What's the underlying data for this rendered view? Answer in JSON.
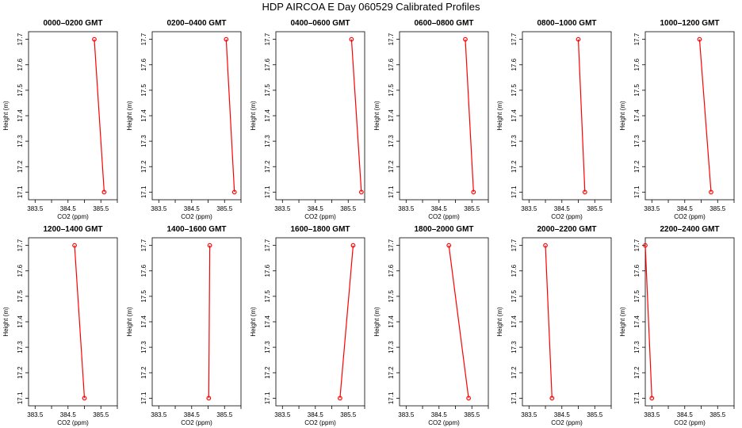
{
  "figure": {
    "title": "HDP  AIRCOA E  Day 060529  Calibrated Profiles"
  },
  "colors": {
    "series": "#ff0000",
    "axis": "#000000",
    "background": "#ffffff"
  },
  "chart_data": [
    {
      "type": "line",
      "title": "0000–0200 GMT",
      "xlabel": "CO2 (ppm)",
      "ylabel": "Height (m)",
      "xlim": [
        383.3,
        386.0
      ],
      "ylim": [
        17.07,
        17.73
      ],
      "x_ticks": [
        "383.5",
        "384.5",
        "385.5"
      ],
      "x_minor_ticks": [
        384.0,
        385.0,
        386.0
      ],
      "y_ticks": [
        "17.1",
        "17.2",
        "17.3",
        "17.4",
        "17.5",
        "17.6",
        "17.7"
      ],
      "x": [
        385.3,
        385.6
      ],
      "y": [
        17.7,
        17.1
      ],
      "grid": false
    },
    {
      "type": "line",
      "title": "0200–0400 GMT",
      "xlabel": "CO2 (ppm)",
      "ylabel": "Height (m)",
      "xlim": [
        383.3,
        386.0
      ],
      "ylim": [
        17.07,
        17.73
      ],
      "x_ticks": [
        "383.5",
        "384.5",
        "385.5"
      ],
      "x_minor_ticks": [
        384.0,
        385.0,
        386.0
      ],
      "y_ticks": [
        "17.1",
        "17.2",
        "17.3",
        "17.4",
        "17.5",
        "17.6",
        "17.7"
      ],
      "x": [
        385.55,
        385.8
      ],
      "y": [
        17.7,
        17.1
      ],
      "grid": false
    },
    {
      "type": "line",
      "title": "0400–0600 GMT",
      "xlabel": "CO2 (ppm)",
      "ylabel": "Height (m)",
      "xlim": [
        383.3,
        386.0
      ],
      "ylim": [
        17.07,
        17.73
      ],
      "x_ticks": [
        "383.5",
        "384.5",
        "385.5"
      ],
      "x_minor_ticks": [
        384.0,
        385.0,
        386.0
      ],
      "y_ticks": [
        "17.1",
        "17.2",
        "17.3",
        "17.4",
        "17.5",
        "17.6",
        "17.7"
      ],
      "x": [
        385.6,
        385.9
      ],
      "y": [
        17.7,
        17.1
      ],
      "grid": false
    },
    {
      "type": "line",
      "title": "0600–0800 GMT",
      "xlabel": "CO2 (ppm)",
      "ylabel": "Height (m)",
      "xlim": [
        383.3,
        386.0
      ],
      "ylim": [
        17.07,
        17.73
      ],
      "x_ticks": [
        "383.5",
        "384.5",
        "385.5"
      ],
      "x_minor_ticks": [
        384.0,
        385.0,
        386.0
      ],
      "y_ticks": [
        "17.1",
        "17.2",
        "17.3",
        "17.4",
        "17.5",
        "17.6",
        "17.7"
      ],
      "x": [
        385.3,
        385.55
      ],
      "y": [
        17.7,
        17.1
      ],
      "grid": false
    },
    {
      "type": "line",
      "title": "0800–1000 GMT",
      "xlabel": "CO2 (ppm)",
      "ylabel": "Height (m)",
      "xlim": [
        383.3,
        386.0
      ],
      "ylim": [
        17.07,
        17.73
      ],
      "x_ticks": [
        "383.5",
        "384.5",
        "385.5"
      ],
      "x_minor_ticks": [
        384.0,
        385.0,
        386.0
      ],
      "y_ticks": [
        "17.1",
        "17.2",
        "17.3",
        "17.4",
        "17.5",
        "17.6",
        "17.7"
      ],
      "x": [
        385.0,
        385.2
      ],
      "y": [
        17.7,
        17.1
      ],
      "grid": false
    },
    {
      "type": "line",
      "title": "1000–1200 GMT",
      "xlabel": "CO2 (ppm)",
      "ylabel": "Height (m)",
      "xlim": [
        383.3,
        386.0
      ],
      "ylim": [
        17.07,
        17.73
      ],
      "x_ticks": [
        "383.5",
        "384.5",
        "385.5"
      ],
      "x_minor_ticks": [
        384.0,
        385.0,
        386.0
      ],
      "y_ticks": [
        "17.1",
        "17.2",
        "17.3",
        "17.4",
        "17.5",
        "17.6",
        "17.7"
      ],
      "x": [
        384.95,
        385.3
      ],
      "y": [
        17.7,
        17.1
      ],
      "grid": false
    },
    {
      "type": "line",
      "title": "1200–1400 GMT",
      "xlabel": "CO2 (ppm)",
      "ylabel": "Height (m)",
      "xlim": [
        383.3,
        386.0
      ],
      "ylim": [
        17.07,
        17.73
      ],
      "x_ticks": [
        "383.5",
        "384.5",
        "385.5"
      ],
      "x_minor_ticks": [
        384.0,
        385.0,
        386.0
      ],
      "y_ticks": [
        "17.1",
        "17.2",
        "17.3",
        "17.4",
        "17.5",
        "17.6",
        "17.7"
      ],
      "x": [
        384.7,
        385.0
      ],
      "y": [
        17.7,
        17.1
      ],
      "grid": false
    },
    {
      "type": "line",
      "title": "1400–1600 GMT",
      "xlabel": "CO2 (ppm)",
      "ylabel": "Height (m)",
      "xlim": [
        383.3,
        386.0
      ],
      "ylim": [
        17.07,
        17.73
      ],
      "x_ticks": [
        "383.5",
        "384.5",
        "385.5"
      ],
      "x_minor_ticks": [
        384.0,
        385.0,
        386.0
      ],
      "y_ticks": [
        "17.1",
        "17.2",
        "17.3",
        "17.4",
        "17.5",
        "17.6",
        "17.7"
      ],
      "x": [
        385.05,
        385.02
      ],
      "y": [
        17.7,
        17.1
      ],
      "grid": false
    },
    {
      "type": "line",
      "title": "1600–1800 GMT",
      "xlabel": "CO2 (ppm)",
      "ylabel": "Height (m)",
      "xlim": [
        383.3,
        386.0
      ],
      "ylim": [
        17.07,
        17.73
      ],
      "x_ticks": [
        "383.5",
        "384.5",
        "385.5"
      ],
      "x_minor_ticks": [
        384.0,
        385.0,
        386.0
      ],
      "y_ticks": [
        "17.1",
        "17.2",
        "17.3",
        "17.4",
        "17.5",
        "17.6",
        "17.7"
      ],
      "x": [
        385.65,
        385.25
      ],
      "y": [
        17.7,
        17.1
      ],
      "grid": false
    },
    {
      "type": "line",
      "title": "1800–2000 GMT",
      "xlabel": "CO2 (ppm)",
      "ylabel": "Height (m)",
      "xlim": [
        383.3,
        386.0
      ],
      "ylim": [
        17.07,
        17.73
      ],
      "x_ticks": [
        "383.5",
        "384.5",
        "385.5"
      ],
      "x_minor_ticks": [
        384.0,
        385.0,
        386.0
      ],
      "y_ticks": [
        "17.1",
        "17.2",
        "17.3",
        "17.4",
        "17.5",
        "17.6",
        "17.7"
      ],
      "x": [
        384.8,
        385.4
      ],
      "y": [
        17.7,
        17.1
      ],
      "grid": false
    },
    {
      "type": "line",
      "title": "2000–2200 GMT",
      "xlabel": "CO2 (ppm)",
      "ylabel": "Height (m)",
      "xlim": [
        383.3,
        386.0
      ],
      "ylim": [
        17.07,
        17.73
      ],
      "x_ticks": [
        "383.5",
        "384.5",
        "385.5"
      ],
      "x_minor_ticks": [
        384.0,
        385.0,
        386.0
      ],
      "y_ticks": [
        "17.1",
        "17.2",
        "17.3",
        "17.4",
        "17.5",
        "17.6",
        "17.7"
      ],
      "x": [
        384.0,
        384.2
      ],
      "y": [
        17.7,
        17.1
      ],
      "grid": false
    },
    {
      "type": "line",
      "title": "2200–2400 GMT",
      "xlabel": "CO2 (ppm)",
      "ylabel": "Height (m)",
      "xlim": [
        383.3,
        386.0
      ],
      "ylim": [
        17.07,
        17.73
      ],
      "x_ticks": [
        "383.5",
        "384.5",
        "385.5"
      ],
      "x_minor_ticks": [
        384.0,
        385.0,
        386.0
      ],
      "y_ticks": [
        "17.1",
        "17.2",
        "17.3",
        "17.4",
        "17.5",
        "17.6",
        "17.7"
      ],
      "x": [
        383.3,
        383.5
      ],
      "y": [
        17.7,
        17.1
      ],
      "grid": false
    }
  ]
}
